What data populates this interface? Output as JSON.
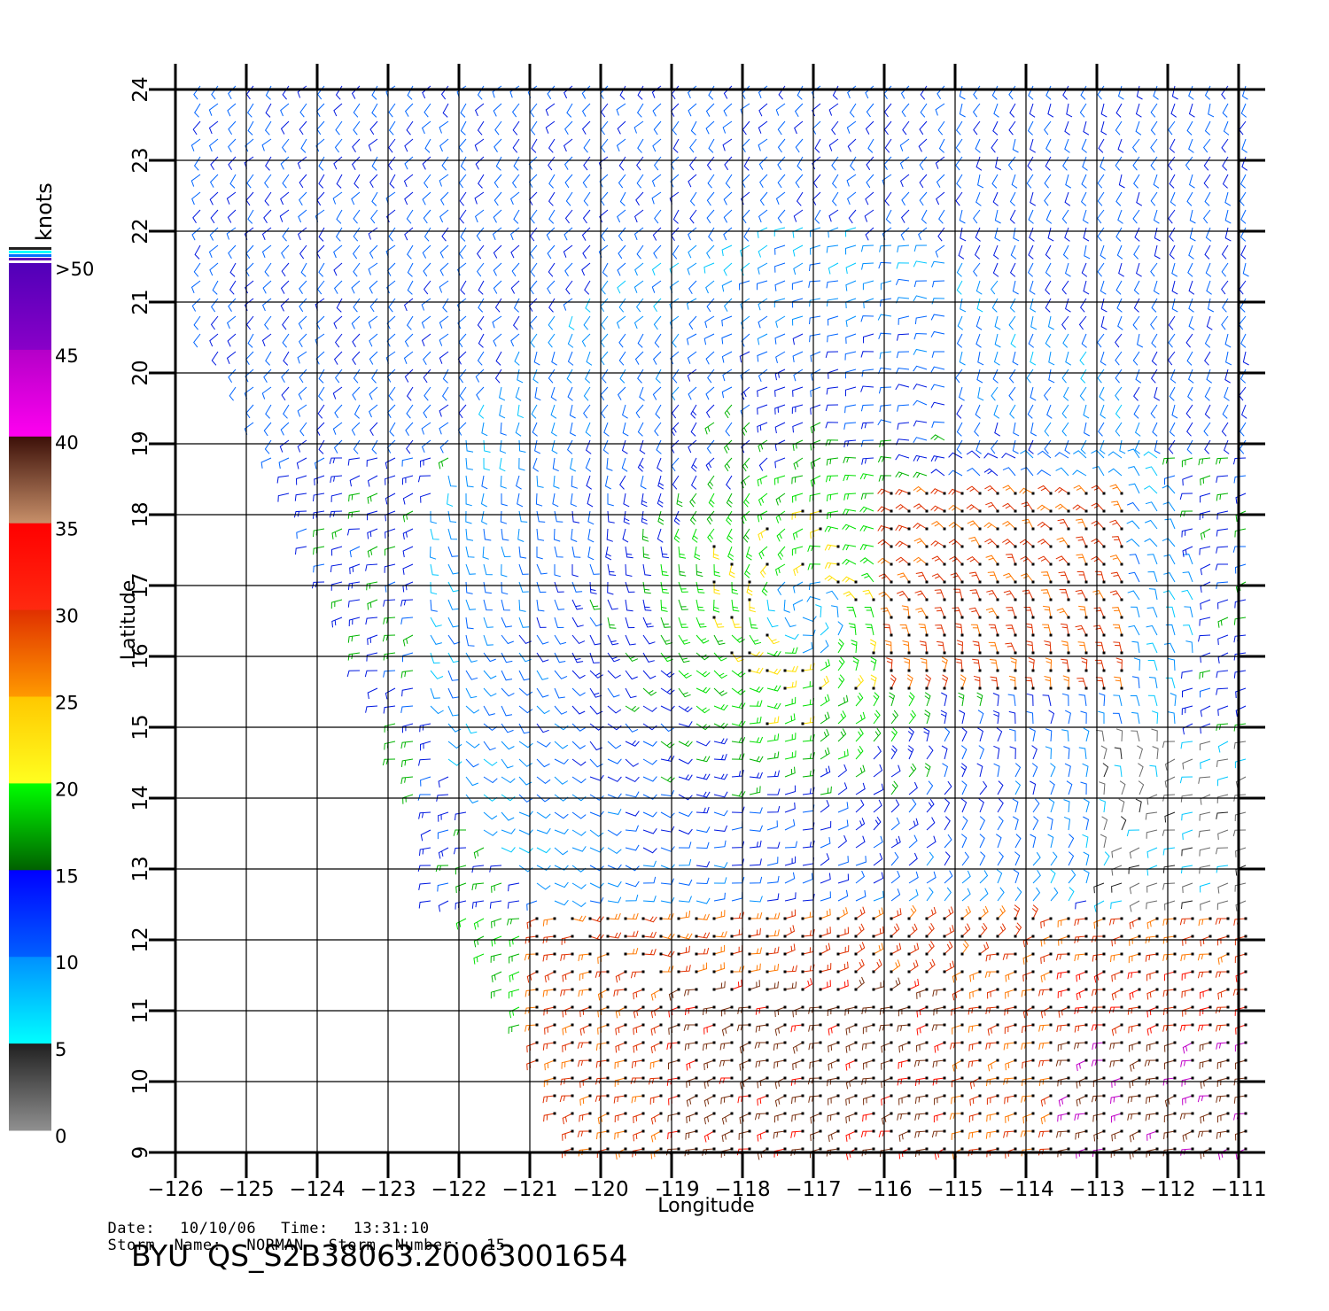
{
  "axes": {
    "xlabel": "Longitude",
    "ylabel": "Latitude",
    "x_ticks": [
      "-126",
      "-125",
      "-124",
      "-123",
      "-122",
      "-121",
      "-120",
      "-119",
      "-118",
      "-117",
      "-116",
      "-115",
      "-114",
      "-113",
      "-112",
      "-111"
    ],
    "y_ticks": [
      "9",
      "10",
      "11",
      "12",
      "13",
      "14",
      "15",
      "16",
      "17",
      "18",
      "19",
      "20",
      "21",
      "22",
      "23",
      "24"
    ],
    "xlim": [
      -126,
      -110.6
    ],
    "ylim": [
      9,
      24
    ]
  },
  "colorbar": {
    "unit": "knots",
    "labels": [
      ">50",
      "45",
      "40",
      "35",
      "30",
      "25",
      "20",
      "15",
      "10",
      "5",
      "0"
    ],
    "bins": [
      {
        "from": 45,
        "to": 50,
        "colors": [
          "#5000b8",
          "#8a00c8"
        ]
      },
      {
        "from": 40,
        "to": 45,
        "colors": [
          "#b400c8",
          "#ff00f0"
        ]
      },
      {
        "from": 35,
        "to": 40,
        "colors": [
          "#3c1008",
          "#c8906a"
        ]
      },
      {
        "from": 30,
        "to": 35,
        "colors": [
          "#ff0000",
          "#ff2a10"
        ]
      },
      {
        "from": 25,
        "to": 30,
        "colors": [
          "#e03000",
          "#ff9a00"
        ]
      },
      {
        "from": 20,
        "to": 25,
        "colors": [
          "#ffc800",
          "#ffff20"
        ]
      },
      {
        "from": 15,
        "to": 20,
        "colors": [
          "#00ff00",
          "#006000"
        ]
      },
      {
        "from": 10,
        "to": 15,
        "colors": [
          "#0000ff",
          "#0060ff"
        ]
      },
      {
        "from": 5,
        "to": 10,
        "colors": [
          "#0090ff",
          "#00ffff"
        ]
      },
      {
        "from": 0,
        "to": 5,
        "colors": [
          "#202020",
          "#909090"
        ]
      }
    ]
  },
  "info": {
    "date_label": "Date:",
    "date": "10/10/06",
    "time_label": "Time:",
    "time": "13:31:10",
    "storm_name_label": "Storm  Name:",
    "storm_name": "NORMAN",
    "storm_number_label": "Storm  Number:",
    "storm_number": "15",
    "product_id": "BYU  QS_S2B38063.20063001654"
  },
  "map_data": {
    "storm_center_lon": -117.1,
    "storm_center_lat": 16.6,
    "swath_description": "wind barbs"
  }
}
